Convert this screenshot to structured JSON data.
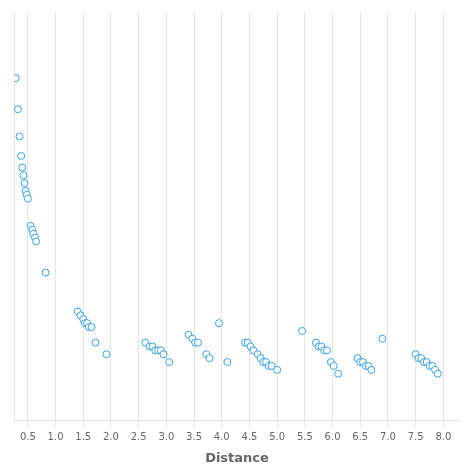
{
  "chart_data": {
    "type": "scatter",
    "xlabel": "Distance",
    "xlim": [
      0.25,
      8.3
    ],
    "ylim": [
      0.0,
      1.05
    ],
    "xticks": [
      0.5,
      {
        "value": 1.0,
        "label": "1.0"
      },
      1.5,
      {
        "value": 2.0,
        "label": "2.0"
      },
      2.5,
      {
        "value": 3.0,
        "label": "3.0"
      },
      3.5,
      {
        "value": 4.0,
        "label": "4.0"
      },
      4.5,
      {
        "value": 5.0,
        "label": "5.0"
      },
      5.5,
      {
        "value": 6.0,
        "label": "6.0"
      },
      6.5,
      {
        "value": 7.0,
        "label": "7.0"
      },
      7.5,
      {
        "value": 8.0,
        "label": "8.0"
      }
    ],
    "yticks": [],
    "grid": "x",
    "tick_labels": "x",
    "marker": "circle",
    "x": [
      0.28,
      0.32,
      0.35,
      0.38,
      0.4,
      0.42,
      0.44,
      0.46,
      0.48,
      0.5,
      0.55,
      0.58,
      0.6,
      0.63,
      0.65,
      0.82,
      1.4,
      1.45,
      1.5,
      1.53,
      1.57,
      1.6,
      1.65,
      1.72,
      1.92,
      2.62,
      2.7,
      2.75,
      2.8,
      2.85,
      2.9,
      2.95,
      3.05,
      3.4,
      3.47,
      3.52,
      3.57,
      3.72,
      3.78,
      3.95,
      4.1,
      4.42,
      4.47,
      4.52,
      4.57,
      4.65,
      4.7,
      4.75,
      4.8,
      4.85,
      4.9,
      5.0,
      5.45,
      5.7,
      5.75,
      5.8,
      5.85,
      5.9,
      5.97,
      6.02,
      6.1,
      6.45,
      6.5,
      6.55,
      6.6,
      6.65,
      6.7,
      6.9,
      7.5,
      7.55,
      7.6,
      7.65,
      7.7,
      7.75,
      7.8,
      7.85,
      7.9
    ],
    "values": [
      0.88,
      0.8,
      0.73,
      0.68,
      0.65,
      0.63,
      0.61,
      0.59,
      0.58,
      0.57,
      0.5,
      0.49,
      0.48,
      0.47,
      0.46,
      0.38,
      0.28,
      0.27,
      0.26,
      0.25,
      0.25,
      0.24,
      0.24,
      0.2,
      0.17,
      0.2,
      0.19,
      0.19,
      0.18,
      0.18,
      0.18,
      0.17,
      0.15,
      0.22,
      0.21,
      0.2,
      0.2,
      0.17,
      0.16,
      0.25,
      0.15,
      0.2,
      0.2,
      0.19,
      0.18,
      0.17,
      0.16,
      0.15,
      0.15,
      0.14,
      0.14,
      0.13,
      0.23,
      0.2,
      0.19,
      0.19,
      0.18,
      0.18,
      0.15,
      0.14,
      0.12,
      0.16,
      0.15,
      0.15,
      0.14,
      0.14,
      0.13,
      0.21,
      0.17,
      0.16,
      0.16,
      0.15,
      0.15,
      0.14,
      0.14,
      0.13,
      0.12
    ]
  }
}
